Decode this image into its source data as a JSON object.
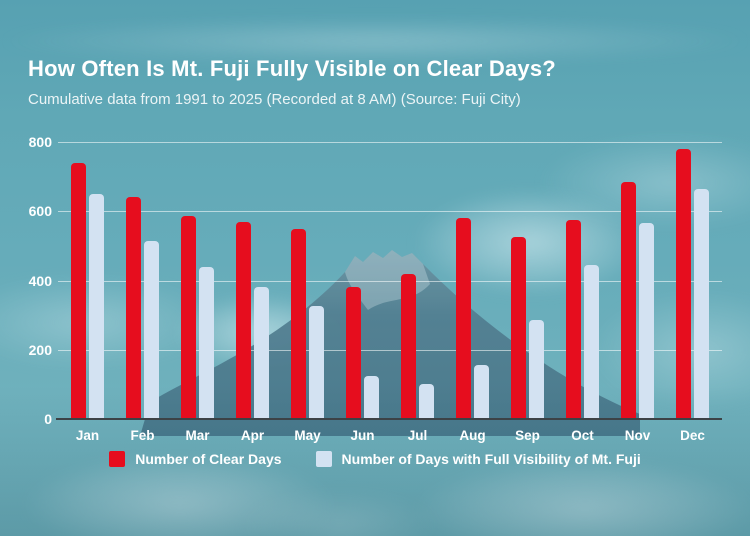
{
  "header": {
    "title": "How Often Is Mt. Fuji Fully Visible on Clear Days?",
    "subtitle": "Cumulative data from 1991 to 2025 (Recorded at 8 AM) (Source: Fuji City)"
  },
  "chart_data": {
    "type": "bar",
    "title": "How Often Is Mt. Fuji Fully Visible on Clear Days?",
    "subtitle": "Cumulative data from 1991 to 2025 (Recorded at 8 AM) (Source: Fuji City)",
    "categories": [
      "Jan",
      "Feb",
      "Mar",
      "Apr",
      "May",
      "Jun",
      "Jul",
      "Aug",
      "Sep",
      "Oct",
      "Nov",
      "Dec"
    ],
    "series": [
      {
        "name": "Number of Clear Days",
        "color": "#e60d1e",
        "values": [
          740,
          640,
          585,
          570,
          550,
          380,
          420,
          580,
          525,
          575,
          685,
          780
        ]
      },
      {
        "name": "Number of Days with Full Visibility of Mt. Fuji",
        "color": "#d3e2f2",
        "values": [
          650,
          515,
          440,
          380,
          325,
          125,
          100,
          155,
          285,
          445,
          565,
          665
        ]
      }
    ],
    "xlabel": "",
    "ylabel": "",
    "ylim": [
      0,
      800
    ],
    "yticks": [
      0,
      200,
      400,
      600,
      800
    ],
    "grid": "horizontal",
    "legend_position": "bottom"
  },
  "colors": {
    "bar_clear": "#e60d1e",
    "bar_visibility": "#d3e2f2",
    "background_teal": "#66acba",
    "gridline": "rgba(255,255,255,0.55)",
    "axis_line": "#3c4246",
    "text": "#ffffff"
  }
}
